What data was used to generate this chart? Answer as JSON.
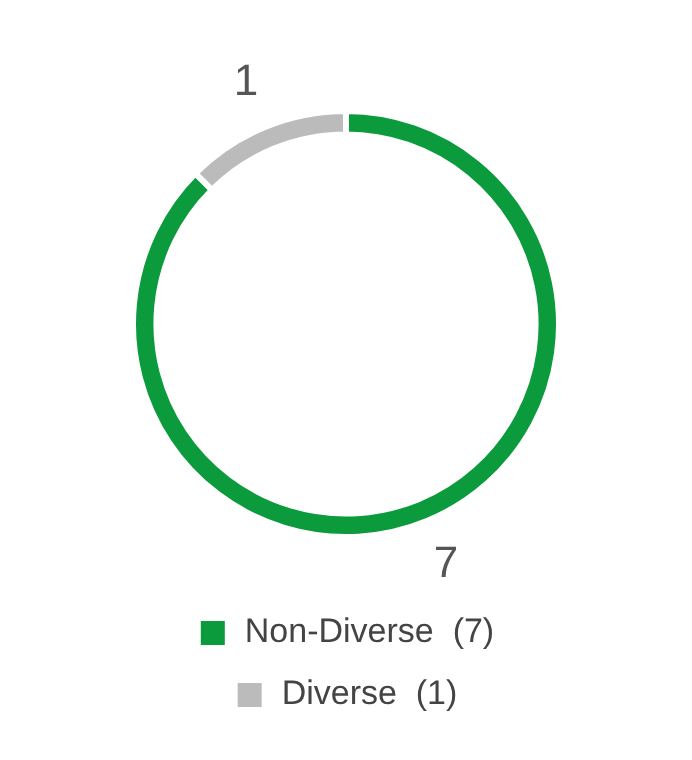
{
  "chart_data": {
    "type": "donut",
    "categories": [
      "Non-Diverse  (7)",
      "Diverse  (1)"
    ],
    "values": [
      7,
      1
    ],
    "colors": [
      "#0b9a3c",
      "#bbbbbb"
    ],
    "data_labels": true,
    "legend": "bottom"
  }
}
